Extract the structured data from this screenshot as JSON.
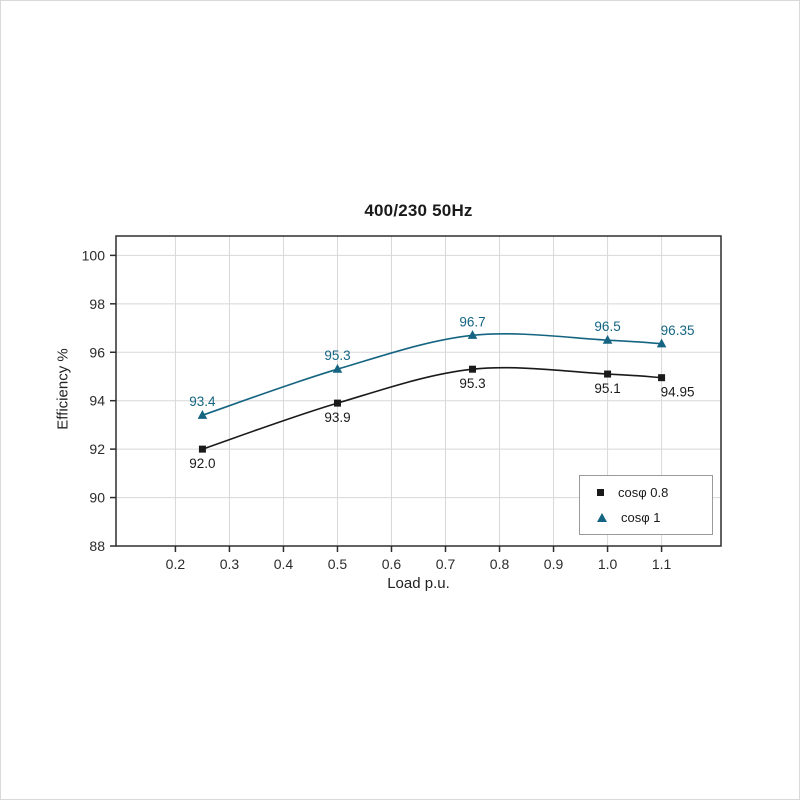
{
  "chart_data": {
    "type": "line",
    "title": "400/230 50Hz",
    "xlabel": "Load p.u.",
    "ylabel": "Efficiency %",
    "xlim": [
      0.09,
      1.21
    ],
    "ylim": [
      88,
      100.8
    ],
    "x_ticks": [
      0.2,
      0.3,
      0.4,
      0.5,
      0.6,
      0.7,
      0.8,
      0.9,
      1.0,
      1.1
    ],
    "y_ticks": [
      88,
      90,
      92,
      94,
      96,
      98,
      100
    ],
    "grid": true,
    "grid_color": "#d8d8d8",
    "axis_color": "#2e2e2e",
    "legend_position": "bottom-right",
    "x": [
      0.25,
      0.5,
      0.75,
      1.0,
      1.1
    ],
    "series": [
      {
        "name": "cosφ 0.8",
        "color": "#1a1a1a",
        "marker": "square",
        "values": [
          92.0,
          93.9,
          95.3,
          95.1,
          94.95
        ],
        "labels": [
          "92.0",
          "93.9",
          "95.3",
          "95.1",
          "94.95"
        ],
        "label_side": "below"
      },
      {
        "name": "cosφ 1",
        "color": "#156582",
        "marker": "triangle",
        "values": [
          93.4,
          95.3,
          96.7,
          96.5,
          96.35
        ],
        "labels": [
          "93.4",
          "95.3",
          "96.7",
          "96.5",
          "96.35"
        ],
        "label_side": "above"
      }
    ]
  }
}
